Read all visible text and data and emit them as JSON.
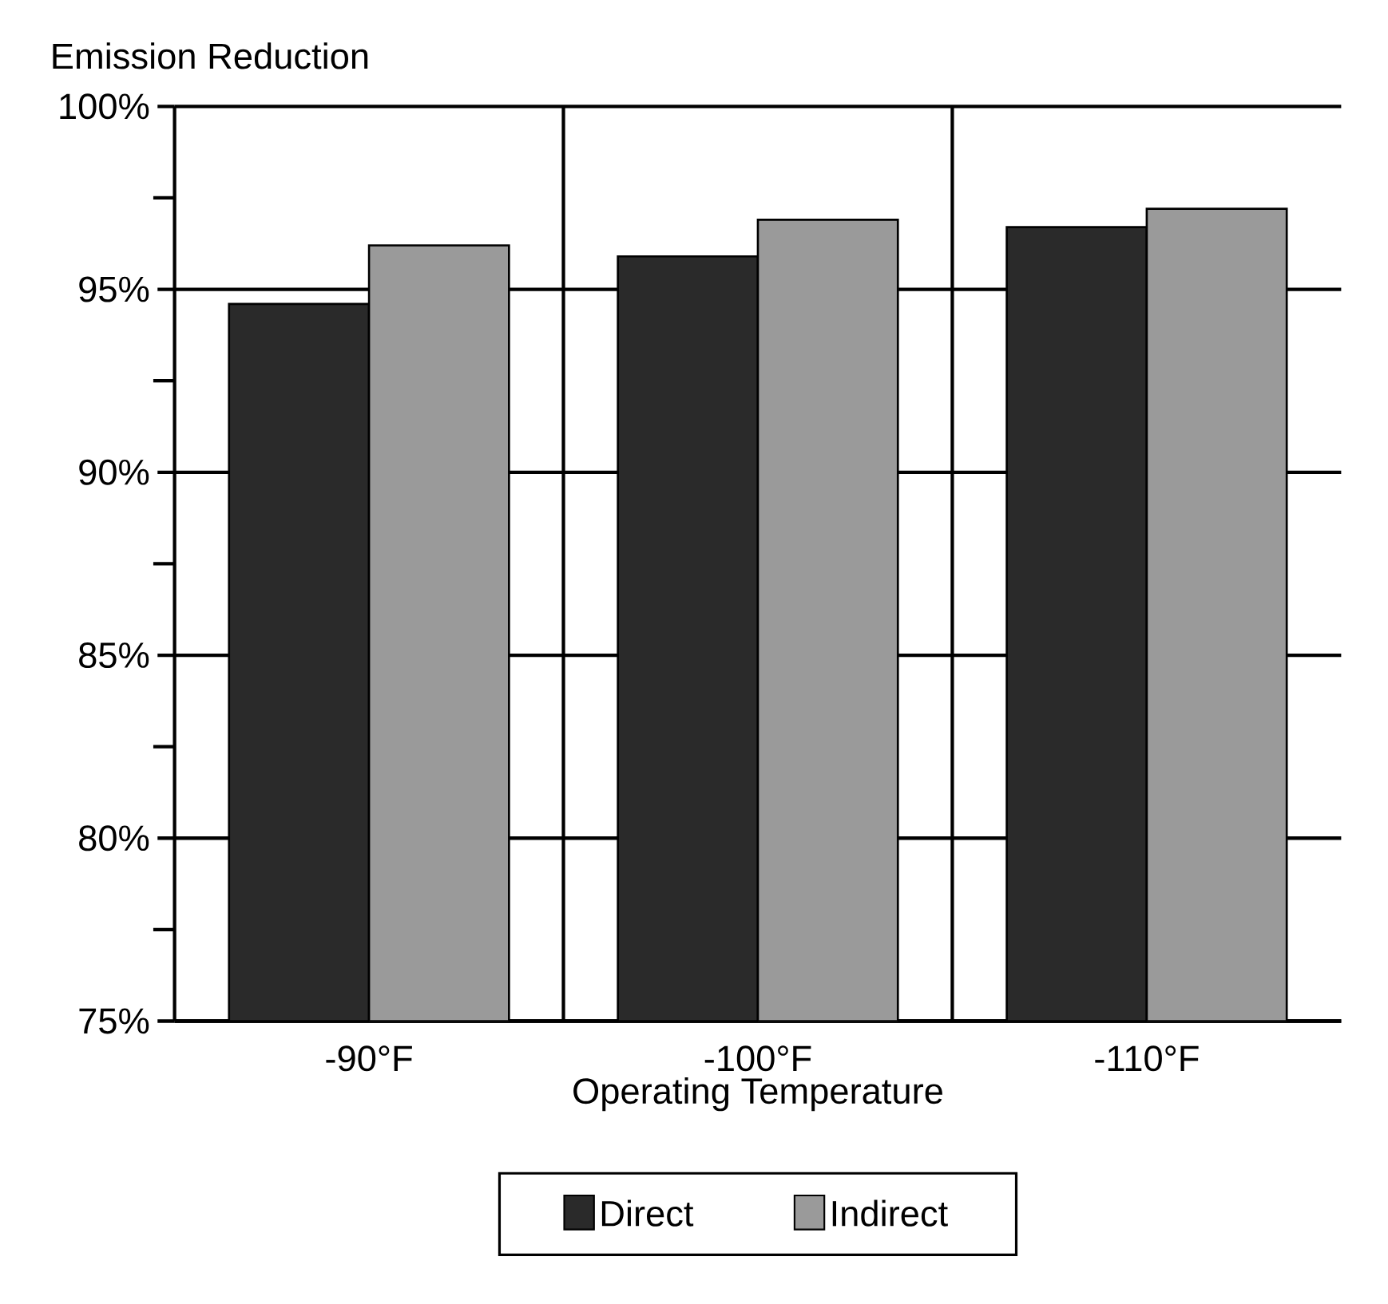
{
  "chart_data": {
    "type": "bar",
    "ylabel": "Emission Reduction",
    "xlabel": "Operating Temperature",
    "categories": [
      "-90°F",
      "-100°F",
      "-110°F"
    ],
    "series": [
      {
        "name": "Direct",
        "color": "#2a2a2a",
        "values": [
          94.6,
          95.9,
          96.7
        ]
      },
      {
        "name": "Indirect",
        "color": "#9a9a9a",
        "values": [
          96.2,
          96.9,
          97.2
        ]
      }
    ],
    "ylim": [
      75,
      100
    ],
    "yticks": [
      {
        "value": 75,
        "label": "75%"
      },
      {
        "value": 77.5,
        "label": null
      },
      {
        "value": 80,
        "label": "80%"
      },
      {
        "value": 82.5,
        "label": null
      },
      {
        "value": 85,
        "label": "85%"
      },
      {
        "value": 87.5,
        "label": null
      },
      {
        "value": 90,
        "label": "90%"
      },
      {
        "value": 92.5,
        "label": null
      },
      {
        "value": 95,
        "label": "95%"
      },
      {
        "value": 97.5,
        "label": null
      },
      {
        "value": 100,
        "label": "100%"
      }
    ],
    "grid": true,
    "legend": "bottom"
  }
}
